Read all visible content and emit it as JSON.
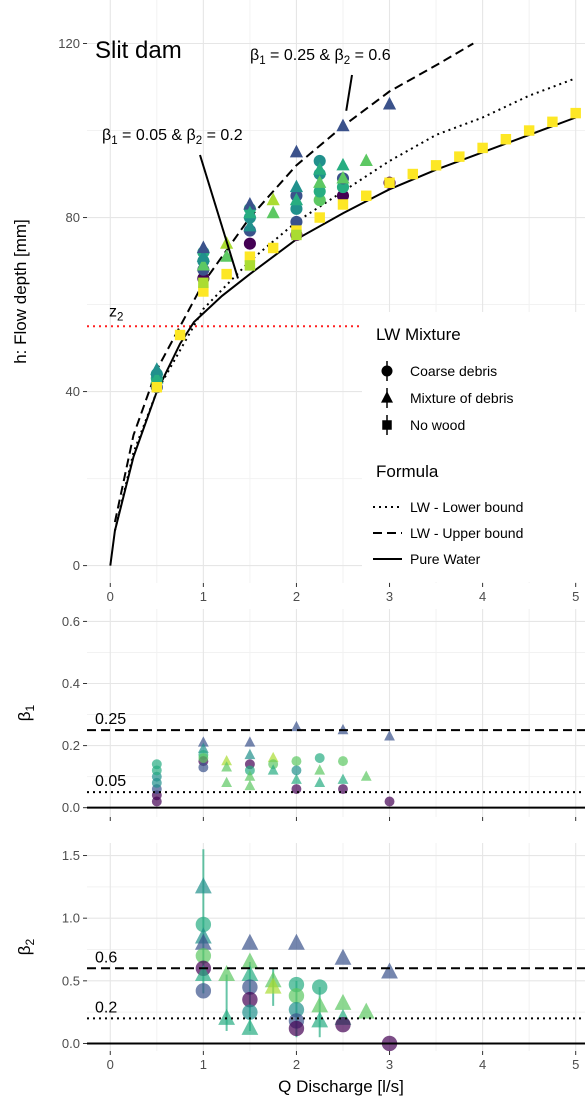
{
  "colors": {
    "panel_bg": "#ffffff",
    "grid_major": "#e6e6e6",
    "grid_minor": "#f2f2f2",
    "axis_text": "#4d4d4d",
    "z2_line": "#ff2020",
    "viridis": [
      "#440154",
      "#3b528b",
      "#21908c",
      "#27ad81",
      "#5dc863",
      "#aadc32",
      "#fde725"
    ]
  },
  "chart_data": [
    {
      "type": "scatter",
      "title": "Slit dam",
      "xlabel": "Q Discharge [l/s]",
      "ylabel": "h: Flow depth [mm]",
      "xlim": [
        -0.25,
        5.1
      ],
      "ylim": [
        -4,
        130
      ],
      "x_ticks": [
        0,
        1,
        2,
        3,
        4,
        5
      ],
      "x_tick_labels": [
        "0",
        "1",
        "2",
        "3",
        "4",
        "5"
      ],
      "y_ticks": [
        0,
        40,
        80,
        120
      ],
      "y_tick_labels": [
        "0",
        "40",
        "80",
        "120"
      ],
      "grid": true,
      "hline": {
        "label": "z2",
        "label_main": "z",
        "label_sub": "2",
        "y": 55,
        "style": "dotted",
        "color": "#ff2020"
      },
      "annotations": [
        {
          "text": "β1 = 0.25 & β2 = 0.6",
          "parts": [
            "β",
            "1",
            " = 0.25 & β",
            "2",
            " = 0.6"
          ],
          "arrow_to": [
            2.75,
            105
          ]
        },
        {
          "text": "β1 = 0.05 & β2 = 0.2",
          "parts": [
            "β",
            "1",
            " = 0.05 & β",
            "2",
            " = 0.2"
          ],
          "arrow_to": [
            1.4,
            71
          ]
        }
      ],
      "curves": [
        {
          "name": "LW - Lower bound",
          "style": "dotted",
          "x_max": 5.1,
          "points": [
            [
              0.05,
              8
            ],
            [
              0.25,
              26
            ],
            [
              0.5,
              40
            ],
            [
              1,
              59
            ],
            [
              1.5,
              70
            ],
            [
              2,
              79
            ],
            [
              2.5,
              86
            ],
            [
              3,
              93
            ],
            [
              3.5,
              99
            ],
            [
              4,
              103
            ],
            [
              4.5,
              108
            ],
            [
              5,
              112
            ]
          ]
        },
        {
          "name": "LW - Upper bound",
          "style": "dashed",
          "x_max": 3.9,
          "points": [
            [
              0.05,
              10
            ],
            [
              0.25,
              30
            ],
            [
              0.5,
              45
            ],
            [
              1,
              65
            ],
            [
              1.5,
              80
            ],
            [
              2,
              92
            ],
            [
              2.5,
              101
            ],
            [
              3,
              109
            ],
            [
              3.5,
              115
            ],
            [
              3.9,
              120
            ]
          ]
        },
        {
          "name": "Pure Water",
          "style": "solid",
          "x_max": 5.1,
          "points": [
            [
              0,
              0
            ],
            [
              0.05,
              8
            ],
            [
              0.25,
              25
            ],
            [
              0.5,
              40
            ],
            [
              0.75,
              51
            ],
            [
              0.9,
              56
            ],
            [
              1.2,
              62
            ],
            [
              1.5,
              67
            ],
            [
              2,
              75
            ],
            [
              2.5,
              81
            ],
            [
              3,
              86.5
            ],
            [
              3.5,
              91
            ],
            [
              4,
              95
            ],
            [
              4.5,
              99
            ],
            [
              5,
              103
            ]
          ]
        }
      ],
      "legend": {
        "position": "right",
        "shape_title": "LW Mixture",
        "shape_entries": [
          "Coarse debris",
          "Mixture of debris",
          "No wood"
        ],
        "line_title": "Formula",
        "line_entries": [
          "LW - Lower bound",
          "LW - Upper bound",
          "Pure Water"
        ]
      },
      "series": [
        {
          "name": "Coarse debris",
          "shape": "circle",
          "points": [
            [
              0.5,
              41,
              1
            ],
            [
              0.5,
              43,
              3
            ],
            [
              0.5,
              44,
              2
            ],
            [
              1,
              66,
              0
            ],
            [
              1,
              68,
              1
            ],
            [
              1,
              70,
              2
            ],
            [
              1,
              72,
              3
            ],
            [
              1.5,
              74,
              0
            ],
            [
              1.5,
              77,
              1
            ],
            [
              1.5,
              80,
              2
            ],
            [
              1.5,
              82,
              3
            ],
            [
              2,
              76,
              0
            ],
            [
              2,
              79,
              1
            ],
            [
              2,
              82,
              2
            ],
            [
              2,
              85,
              1
            ],
            [
              2.25,
              84,
              4
            ],
            [
              2.25,
              86,
              3
            ],
            [
              2.25,
              90,
              2
            ],
            [
              2.5,
              85,
              0
            ],
            [
              2.5,
              87,
              3
            ],
            [
              2.5,
              89,
              1
            ],
            [
              3,
              88,
              0
            ],
            [
              2.25,
              93,
              2
            ]
          ]
        },
        {
          "name": "Mixture of debris",
          "shape": "triangle",
          "points": [
            [
              0.5,
              43,
              3
            ],
            [
              0.5,
              45,
              2
            ],
            [
              1,
              69,
              4
            ],
            [
              1,
              71,
              2
            ],
            [
              1,
              73,
              1
            ],
            [
              1.25,
              71,
              4
            ],
            [
              1.25,
              74,
              5
            ],
            [
              1.5,
              78,
              2
            ],
            [
              1.5,
              83,
              1
            ],
            [
              1.5,
              81,
              3
            ],
            [
              1.75,
              81,
              4
            ],
            [
              1.75,
              84,
              5
            ],
            [
              2,
              84,
              3
            ],
            [
              2,
              87,
              2
            ],
            [
              2,
              95,
              1
            ],
            [
              2.25,
              88,
              4
            ],
            [
              2.25,
              91,
              3
            ],
            [
              2.5,
              89,
              4
            ],
            [
              2.5,
              92,
              3
            ],
            [
              2.5,
              101,
              1
            ],
            [
              2.75,
              93,
              4
            ],
            [
              3,
              106,
              1
            ]
          ]
        },
        {
          "name": "No wood",
          "shape": "square",
          "points": [
            [
              0.5,
              41,
              6
            ],
            [
              0.75,
              53,
              6
            ],
            [
              1,
              63,
              6
            ],
            [
              1,
              65,
              5
            ],
            [
              1.25,
              67,
              6
            ],
            [
              1.5,
              71,
              6
            ],
            [
              1.5,
              69,
              5
            ],
            [
              1.75,
              73,
              6
            ],
            [
              2,
              77,
              6
            ],
            [
              2,
              76,
              5
            ],
            [
              2.25,
              80,
              6
            ],
            [
              2.5,
              83,
              6
            ],
            [
              2.75,
              85,
              6
            ],
            [
              3,
              88,
              6
            ],
            [
              3.25,
              90,
              6
            ],
            [
              3.5,
              92,
              6
            ],
            [
              3.75,
              94,
              6
            ],
            [
              4,
              96,
              6
            ],
            [
              4.25,
              98,
              6
            ],
            [
              4.5,
              100,
              6
            ],
            [
              4.75,
              102,
              6
            ],
            [
              5,
              104,
              6
            ]
          ]
        }
      ]
    },
    {
      "type": "scatter",
      "ylabel_main": "β",
      "ylabel_sub": "1",
      "xlim": [
        -0.25,
        5.1
      ],
      "ylim": [
        -0.03,
        0.64
      ],
      "y_ticks": [
        0,
        0.2,
        0.4,
        0.6
      ],
      "y_tick_labels": [
        "0.0",
        "0.2",
        "0.4",
        "0.6"
      ],
      "x_ticks": [
        0,
        1,
        2,
        3,
        4,
        5
      ],
      "grid": true,
      "hlines": [
        {
          "label": "0.25",
          "y": 0.25,
          "style": "dashed"
        },
        {
          "label": "0.05",
          "y": 0.05,
          "style": "dotted"
        },
        {
          "y": 0,
          "style": "solid"
        }
      ],
      "points": [
        [
          0.5,
          0.02,
          0,
          "circle"
        ],
        [
          0.5,
          0.04,
          0,
          "circle"
        ],
        [
          0.5,
          0.06,
          1,
          "circle"
        ],
        [
          0.5,
          0.08,
          2,
          "circle"
        ],
        [
          0.5,
          0.1,
          2,
          "circle"
        ],
        [
          0.5,
          0.12,
          3,
          "circle"
        ],
        [
          0.5,
          0.14,
          3,
          "circle"
        ],
        [
          1,
          0.21,
          1,
          "triangle"
        ],
        [
          1,
          0.19,
          2,
          "triangle"
        ],
        [
          1,
          0.17,
          3,
          "circle"
        ],
        [
          1,
          0.15,
          0,
          "circle"
        ],
        [
          1,
          0.13,
          1,
          "circle"
        ],
        [
          1,
          0.16,
          4,
          "circle"
        ],
        [
          1.25,
          0.15,
          5,
          "triangle"
        ],
        [
          1.25,
          0.13,
          4,
          "triangle"
        ],
        [
          1.25,
          0.08,
          4,
          "triangle"
        ],
        [
          1.5,
          0.21,
          1,
          "triangle"
        ],
        [
          1.5,
          0.17,
          2,
          "triangle"
        ],
        [
          1.5,
          0.14,
          0,
          "circle"
        ],
        [
          1.5,
          0.12,
          3,
          "circle"
        ],
        [
          1.5,
          0.1,
          4,
          "triangle"
        ],
        [
          1.5,
          0.07,
          4,
          "triangle"
        ],
        [
          1.75,
          0.16,
          5,
          "triangle"
        ],
        [
          1.75,
          0.14,
          4,
          "circle"
        ],
        [
          1.75,
          0.12,
          3,
          "triangle"
        ],
        [
          2,
          0.26,
          1,
          "triangle"
        ],
        [
          2,
          0.15,
          4,
          "circle"
        ],
        [
          2,
          0.12,
          2,
          "circle"
        ],
        [
          2,
          0.09,
          3,
          "triangle"
        ],
        [
          2,
          0.06,
          0,
          "circle"
        ],
        [
          2.25,
          0.16,
          3,
          "circle"
        ],
        [
          2.25,
          0.12,
          4,
          "triangle"
        ],
        [
          2.25,
          0.08,
          3,
          "triangle"
        ],
        [
          2.5,
          0.25,
          1,
          "triangle"
        ],
        [
          2.5,
          0.15,
          4,
          "circle"
        ],
        [
          2.5,
          0.09,
          3,
          "triangle"
        ],
        [
          2.5,
          0.06,
          0,
          "circle"
        ],
        [
          2.75,
          0.1,
          4,
          "triangle"
        ],
        [
          3,
          0.23,
          1,
          "triangle"
        ],
        [
          3,
          0.02,
          0,
          "circle"
        ]
      ]
    },
    {
      "type": "scatter",
      "ylabel_main": "β",
      "ylabel_sub": "2",
      "xlabel": "Q Discharge [l/s]",
      "xlim": [
        -0.25,
        5.1
      ],
      "ylim": [
        -0.06,
        1.6
      ],
      "y_ticks": [
        0,
        0.5,
        1,
        1.5
      ],
      "y_tick_labels": [
        "0.0",
        "0.5",
        "1.0",
        "1.5"
      ],
      "x_ticks": [
        0,
        1,
        2,
        3,
        4,
        5
      ],
      "x_tick_labels": [
        "0",
        "1",
        "2",
        "3",
        "4",
        "5"
      ],
      "grid": true,
      "hlines": [
        {
          "label": "0.6",
          "y": 0.6,
          "style": "dashed"
        },
        {
          "label": "0.2",
          "y": 0.2,
          "style": "dotted"
        },
        {
          "y": 0,
          "style": "solid"
        }
      ],
      "error_bars": [
        [
          1,
          0.4,
          1.55
        ],
        [
          1.25,
          0.1,
          0.55
        ],
        [
          1.5,
          0.1,
          0.65
        ],
        [
          2,
          0.05,
          0.5
        ],
        [
          2.25,
          0.05,
          0.45
        ],
        [
          1.75,
          0.3,
          0.6
        ]
      ],
      "points": [
        [
          1,
          1.25,
          2,
          "triangle"
        ],
        [
          1,
          0.95,
          3,
          "circle"
        ],
        [
          1,
          0.85,
          2,
          "triangle"
        ],
        [
          1,
          0.8,
          1,
          "triangle"
        ],
        [
          1,
          0.7,
          4,
          "circle"
        ],
        [
          1,
          0.6,
          0,
          "circle"
        ],
        [
          1,
          0.55,
          3,
          "triangle"
        ],
        [
          1,
          0.42,
          1,
          "circle"
        ],
        [
          1.25,
          0.55,
          4,
          "triangle"
        ],
        [
          1.25,
          0.2,
          3,
          "triangle"
        ],
        [
          1.5,
          0.8,
          1,
          "triangle"
        ],
        [
          1.5,
          0.65,
          4,
          "triangle"
        ],
        [
          1.5,
          0.55,
          3,
          "triangle"
        ],
        [
          1.5,
          0.45,
          1,
          "circle"
        ],
        [
          1.5,
          0.35,
          0,
          "circle"
        ],
        [
          1.5,
          0.25,
          2,
          "circle"
        ],
        [
          1.5,
          0.12,
          3,
          "triangle"
        ],
        [
          1.75,
          0.5,
          4,
          "triangle"
        ],
        [
          1.75,
          0.45,
          5,
          "triangle"
        ],
        [
          2,
          0.8,
          1,
          "triangle"
        ],
        [
          2,
          0.47,
          3,
          "circle"
        ],
        [
          2,
          0.38,
          4,
          "circle"
        ],
        [
          2,
          0.27,
          2,
          "circle"
        ],
        [
          2,
          0.18,
          1,
          "circle"
        ],
        [
          2,
          0.12,
          0,
          "circle"
        ],
        [
          2.25,
          0.45,
          3,
          "circle"
        ],
        [
          2.25,
          0.3,
          4,
          "triangle"
        ],
        [
          2.25,
          0.18,
          3,
          "triangle"
        ],
        [
          2.5,
          0.68,
          1,
          "triangle"
        ],
        [
          2.5,
          0.32,
          4,
          "triangle"
        ],
        [
          2.5,
          0.2,
          3,
          "triangle"
        ],
        [
          2.5,
          0.15,
          0,
          "circle"
        ],
        [
          2.75,
          0.25,
          4,
          "triangle"
        ],
        [
          3,
          0.57,
          1,
          "triangle"
        ],
        [
          3,
          0.0,
          0,
          "circle"
        ]
      ]
    }
  ]
}
